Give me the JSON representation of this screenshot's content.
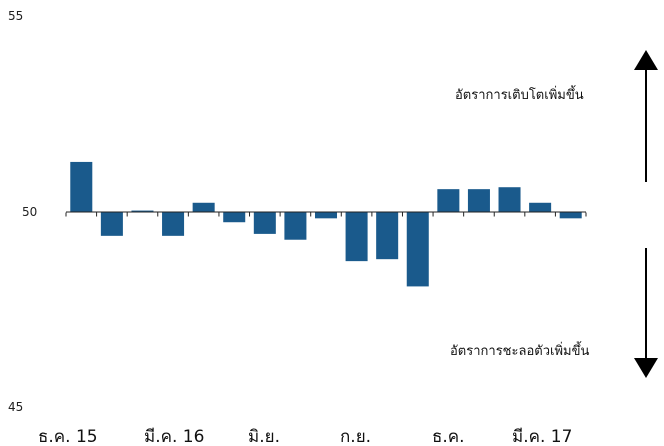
{
  "chart_data": {
    "type": "bar",
    "title": "",
    "xlabel": "",
    "ylabel": "",
    "baseline": 50,
    "ylim": [
      45,
      55
    ],
    "yticks": [
      "55",
      "50",
      "45"
    ],
    "x_tick_labels": [
      "ธ.ค. 15",
      "มี.ค. 16",
      "มิ.ย.",
      "ก.ย.",
      "ธ.ค.",
      "มี.ค. 17"
    ],
    "values": [
      51.3,
      49.4,
      50.05,
      49.4,
      50.25,
      49.75,
      49.45,
      49.3,
      49.85,
      48.75,
      48.8,
      48.1,
      50.6,
      50.6,
      50.65,
      50.25,
      49.85
    ],
    "bar_color": "#1a5a8c",
    "grid": false,
    "legend": "none",
    "annotations": {
      "up": "อัตราการเติบโตเพิ่มขึ้น",
      "down": "อัตราการชะลอตัวเพิ่มขึ้น"
    }
  }
}
